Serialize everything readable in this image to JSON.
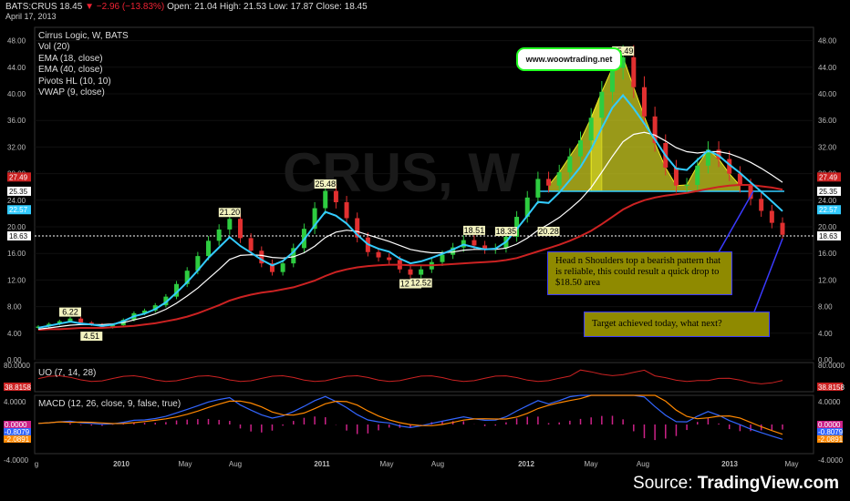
{
  "header": {
    "symbol": "BATS:CRUS",
    "last": "18.45",
    "change": "▼ −2.96 (−13.83%)",
    "ohlc": "Open: 21.04  High: 21.53  Low: 17.87  Close: 18.45",
    "date": "April 17, 2013"
  },
  "legend": [
    "Cirrus Logic, W, BATS",
    "Vol (20)",
    "EMA (18, close)",
    "EMA (40, close)",
    "Pivots HL (10, 10)",
    "VWAP (9, close)"
  ],
  "watermark": "CRUS, W",
  "website": "www.woowtrading.net",
  "annotations": {
    "pattern_note": "Head n Shoulders top a bearish pattern that is reliable, this could result a quick drop to $18.50 area",
    "target_note": "Target achieved today, what next?"
  },
  "indicators": {
    "uo_label": "UO (7, 14, 28)",
    "macd_label": "MACD (12, 26, close, 9, false, true)"
  },
  "source": {
    "prefix": "Source: ",
    "brand": "TradingView.com"
  },
  "colors": {
    "price_up": "#2ecc40",
    "price_down": "#e23030",
    "ema18": "#33ccff",
    "ema40": "#cc2222",
    "vwap": "#ffffff",
    "pattern": "#cccc22",
    "uo": "#cc2222",
    "macd": "#3366ff",
    "signal": "#ff8800",
    "hist": "#cc2288"
  },
  "chart_data": {
    "type": "line",
    "title": "Cirrus Logic, W, BATS",
    "y_ticks": [
      "0.00",
      "4.00",
      "8.00",
      "12.00",
      "16.00",
      "20.00",
      "24.00",
      "28.00",
      "32.00",
      "36.00",
      "40.00",
      "44.00",
      "48.00"
    ],
    "ylim": [
      0,
      50
    ],
    "x_ticks": [
      "g",
      "2010",
      "May",
      "Aug",
      "2011",
      "May",
      "Aug",
      "2012",
      "May",
      "Aug",
      "2013",
      "May"
    ],
    "series": [
      {
        "values": [
          5.0,
          5.4,
          5.8,
          6.2,
          5.6,
          5.3,
          4.9,
          5.2,
          6.0,
          7.0,
          7.4,
          8.2,
          9.5,
          11.4,
          13.4,
          15.6,
          17.9,
          19.6,
          21.2,
          18.3,
          16.4,
          14.5,
          13.2,
          14.5,
          16.8,
          19.7,
          22.8,
          25.4,
          23.7,
          21.3,
          18.4,
          16.2,
          15.4,
          15.0,
          13.6,
          12.8,
          13.6,
          14.7,
          15.8,
          16.9,
          18.0,
          17.2,
          16.6,
          16.8,
          18.5,
          21.5,
          24.4,
          27.2,
          26.2,
          28.2,
          30.6,
          33.0,
          36.4,
          40.3,
          43.9,
          45.5,
          41.0,
          36.6,
          32.6,
          28.9,
          26.2,
          26.3,
          29.2,
          31.6,
          30.2,
          28.0,
          26.2,
          24.2,
          22.4,
          20.6,
          18.8
        ]
      },
      {
        "values": [
          4.6,
          4.8,
          5.0,
          5.2,
          5.3,
          5.3,
          5.3,
          5.4,
          5.6,
          6.0,
          6.4,
          6.9,
          7.6,
          8.5,
          9.6,
          10.8,
          12.2,
          13.6,
          15.1,
          15.7,
          15.8,
          15.7,
          15.4,
          15.3,
          15.5,
          16.1,
          17.1,
          18.4,
          19.2,
          19.5,
          19.3,
          18.8,
          18.3,
          17.8,
          17.2,
          16.6,
          16.3,
          16.1,
          16.1,
          16.2,
          16.5,
          16.6,
          16.6,
          16.6,
          16.8,
          17.4,
          18.3,
          19.5,
          20.4,
          21.4,
          22.7,
          24.1,
          25.9,
          28.2,
          30.6,
          32.8,
          33.9,
          34.2,
          33.8,
          32.9,
          31.9,
          31.3,
          31.1,
          31.3,
          31.3,
          31.0,
          30.4,
          29.7,
          28.8,
          27.8,
          26.7
        ]
      },
      {
        "values": [
          4.5,
          4.6,
          4.6,
          4.7,
          4.8,
          4.8,
          4.8,
          4.9,
          5.0,
          5.1,
          5.3,
          5.5,
          5.8,
          6.1,
          6.5,
          7.0,
          7.6,
          8.2,
          8.9,
          9.4,
          9.8,
          10.1,
          10.3,
          10.6,
          10.9,
          11.4,
          11.9,
          12.6,
          13.2,
          13.6,
          13.9,
          14.1,
          14.2,
          14.3,
          14.3,
          14.2,
          14.2,
          14.2,
          14.3,
          14.4,
          14.5,
          14.6,
          14.7,
          14.8,
          15.0,
          15.3,
          15.8,
          16.3,
          16.8,
          17.3,
          17.9,
          18.6,
          19.4,
          20.4,
          21.5,
          22.6,
          23.4,
          24.0,
          24.4,
          24.7,
          24.9,
          25.1,
          25.4,
          25.7,
          26.0,
          26.2,
          26.3,
          26.3,
          26.1,
          25.9,
          25.6
        ]
      }
    ],
    "price_labels": [
      {
        "text": "6.22",
        "value": 6.22
      },
      {
        "text": "4.51",
        "value": 4.51
      },
      {
        "text": "21.20",
        "value": 21.2
      },
      {
        "text": "12.39",
        "value": 12.39
      },
      {
        "text": "25.48",
        "value": 25.48
      },
      {
        "text": "18.51",
        "value": 18.51
      },
      {
        "text": "12.52",
        "value": 12.52
      },
      {
        "text": "18.35",
        "value": 18.35
      },
      {
        "text": "20.28",
        "value": 20.28
      },
      {
        "text": "45.49",
        "value": 45.49
      }
    ],
    "axis_badges": [
      {
        "text": "27.49",
        "value": 27.49,
        "color": "#cc2222"
      },
      {
        "text": "25.35",
        "value": 25.35,
        "color": "#ffffff"
      },
      {
        "text": "22.57",
        "value": 22.57,
        "color": "#33ccff"
      },
      {
        "text": "18.63",
        "value": 18.63,
        "color": "#ffffff"
      }
    ],
    "uo": {
      "ticks": [
        "80.0000",
        "40.0000"
      ],
      "badge": "38.8158"
    },
    "macd": {
      "ticks": [
        "4.0000",
        "0.0000",
        "-4.0000"
      ],
      "badges": [
        "0.0000",
        "-0.8079",
        "-2.0891"
      ]
    }
  }
}
